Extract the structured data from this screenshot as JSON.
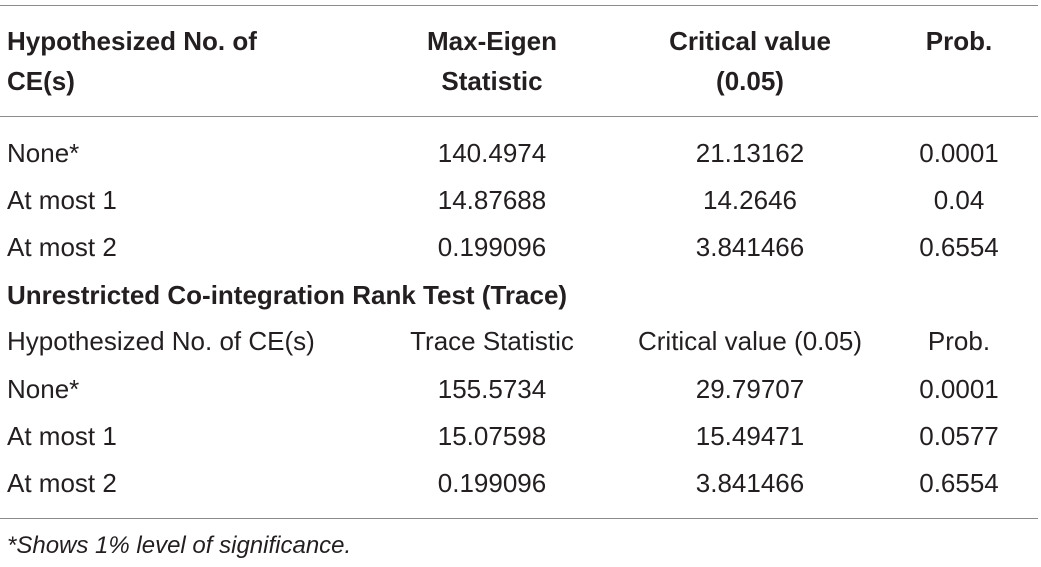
{
  "table1": {
    "headers": {
      "hypothesized_line1": "Hypothesized No. of",
      "hypothesized_line2": "CE(s)",
      "stat_line1": "Max-Eigen",
      "stat_line2": "Statistic",
      "critical_line1": "Critical value",
      "critical_line2": "(0.05)",
      "prob": "Prob."
    },
    "rows": [
      {
        "hypothesis": "None*",
        "statistic": "140.4974",
        "critical": "21.13162",
        "prob": "0.0001"
      },
      {
        "hypothesis": "At most 1",
        "statistic": "14.87688",
        "critical": "14.2646",
        "prob": "0.04"
      },
      {
        "hypothesis": "At most 2",
        "statistic": "0.199096",
        "critical": "3.841466",
        "prob": "0.6554"
      }
    ]
  },
  "table2": {
    "title": "Unrestricted Co-integration Rank Test (Trace)",
    "headers": {
      "hypothesized": "Hypothesized No. of CE(s)",
      "statistic": "Trace Statistic",
      "critical": "Critical value (0.05)",
      "prob": "Prob."
    },
    "rows": [
      {
        "hypothesis": "None*",
        "statistic": "155.5734",
        "critical": "29.79707",
        "prob": "0.0001"
      },
      {
        "hypothesis": "At most 1",
        "statistic": "15.07598",
        "critical": "15.49471",
        "prob": "0.0577"
      },
      {
        "hypothesis": "At most 2",
        "statistic": "0.199096",
        "critical": "3.841466",
        "prob": "0.6554"
      }
    ]
  },
  "footnote": "*Shows 1% level of significance."
}
